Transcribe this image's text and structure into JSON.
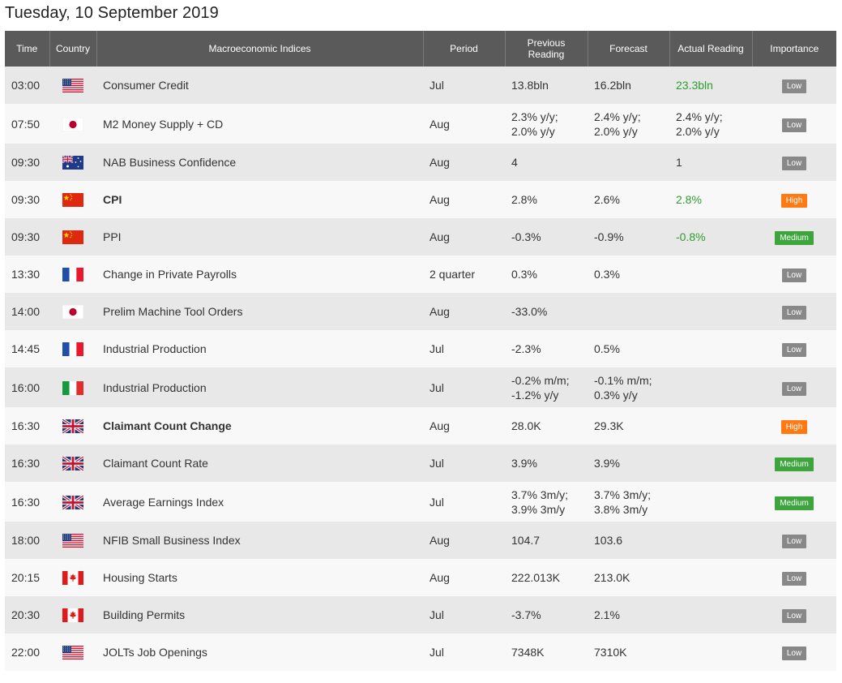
{
  "title": "Tuesday, 10 September 2019",
  "columns": {
    "time": "Time",
    "country": "Country",
    "index": "Macroeconomic Indices",
    "period": "Period",
    "previous_1": "Previous",
    "previous_2": "Reading",
    "forecast": "Forecast",
    "actual": "Actual Reading",
    "importance": "Importance"
  },
  "rows": [
    {
      "time": "03:00",
      "country": "us",
      "flag": "us-flag-icon",
      "index": "Consumer Credit",
      "bold": false,
      "period": "Jul",
      "previous": [
        "13.8bln"
      ],
      "forecast": [
        "16.2bln"
      ],
      "actual": [
        "23.3bln"
      ],
      "actual_color": "#2e9c2e",
      "importance": "Low"
    },
    {
      "time": "07:50",
      "country": "jp",
      "flag": "japan-flag-icon",
      "index": "M2 Money Supply + CD",
      "bold": false,
      "period": "Aug",
      "previous": [
        "2.3% y/y;",
        "2.0% y/y"
      ],
      "forecast": [
        "2.4% y/y;",
        "2.0% y/y"
      ],
      "actual": [
        "2.4% y/y;",
        "2.0% y/y"
      ],
      "actual_color": "",
      "importance": "Low"
    },
    {
      "time": "09:30",
      "country": "au",
      "flag": "australia-flag-icon",
      "index": "NAB Business Confidence",
      "bold": false,
      "period": "Aug",
      "previous": [
        "4"
      ],
      "forecast": [],
      "actual": [
        "1"
      ],
      "actual_color": "",
      "importance": "Low"
    },
    {
      "time": "09:30",
      "country": "cn",
      "flag": "china-flag-icon",
      "index": "CPI",
      "bold": true,
      "period": "Aug",
      "previous": [
        "2.8%"
      ],
      "forecast": [
        "2.6%"
      ],
      "actual": [
        "2.8%"
      ],
      "actual_color": "#2e9c2e",
      "importance": "High"
    },
    {
      "time": "09:30",
      "country": "cn",
      "flag": "china-flag-icon",
      "index": "PPI",
      "bold": false,
      "period": "Aug",
      "previous": [
        "-0.3%"
      ],
      "forecast": [
        "-0.9%"
      ],
      "actual": [
        "-0.8%"
      ],
      "actual_color": "#2e9c2e",
      "importance": "Medium"
    },
    {
      "time": "13:30",
      "country": "fr",
      "flag": "france-flag-icon",
      "index": "Change in Private Payrolls",
      "bold": false,
      "period": "2 quarter",
      "previous": [
        "0.3%"
      ],
      "forecast": [
        "0.3%"
      ],
      "actual": [],
      "actual_color": "",
      "importance": "Low"
    },
    {
      "time": "14:00",
      "country": "jp",
      "flag": "japan-flag-icon",
      "index": "Prelim Machine Tool Orders",
      "bold": false,
      "period": "Aug",
      "previous": [
        "-33.0%"
      ],
      "forecast": [],
      "actual": [],
      "actual_color": "",
      "importance": "Low"
    },
    {
      "time": "14:45",
      "country": "fr",
      "flag": "france-flag-icon",
      "index": "Industrial Production",
      "bold": false,
      "period": "Jul",
      "previous": [
        "-2.3%"
      ],
      "forecast": [
        "0.5%"
      ],
      "actual": [],
      "actual_color": "",
      "importance": "Low"
    },
    {
      "time": "16:00",
      "country": "it",
      "flag": "italy-flag-icon",
      "index": "Industrial Production",
      "bold": false,
      "period": "Jul",
      "previous": [
        "-0.2% m/m;",
        "-1.2% y/y"
      ],
      "forecast": [
        "-0.1% m/m;",
        "0.3% y/y"
      ],
      "actual": [],
      "actual_color": "",
      "importance": "Low"
    },
    {
      "time": "16:30",
      "country": "gb",
      "flag": "uk-flag-icon",
      "index": "Claimant Count Change",
      "bold": true,
      "period": "Aug",
      "previous": [
        "28.0K"
      ],
      "forecast": [
        "29.3K"
      ],
      "actual": [],
      "actual_color": "",
      "importance": "High"
    },
    {
      "time": "16:30",
      "country": "gb",
      "flag": "uk-flag-icon",
      "index": "Claimant Count Rate",
      "bold": false,
      "period": "Jul",
      "previous": [
        "3.9%"
      ],
      "forecast": [
        "3.9%"
      ],
      "actual": [],
      "actual_color": "",
      "importance": "Medium"
    },
    {
      "time": "16:30",
      "country": "gb",
      "flag": "uk-flag-icon",
      "index": "Average Earnings Index",
      "bold": false,
      "period": "Jul",
      "previous": [
        "3.7% 3m/y;",
        "3.9% 3m/y"
      ],
      "forecast": [
        "3.7% 3m/y;",
        "3.8% 3m/y"
      ],
      "actual": [],
      "actual_color": "",
      "importance": "Medium"
    },
    {
      "time": "18:00",
      "country": "us",
      "flag": "us-flag-icon",
      "index": "NFIB Small Business Index",
      "bold": false,
      "period": "Aug",
      "previous": [
        "104.7"
      ],
      "forecast": [
        "103.6"
      ],
      "actual": [],
      "actual_color": "",
      "importance": "Low"
    },
    {
      "time": "20:15",
      "country": "ca",
      "flag": "canada-flag-icon",
      "index": "Housing Starts",
      "bold": false,
      "period": "Aug",
      "previous": [
        "222.013K"
      ],
      "forecast": [
        "213.0K"
      ],
      "actual": [],
      "actual_color": "",
      "importance": "Low"
    },
    {
      "time": "20:30",
      "country": "ca",
      "flag": "canada-flag-icon",
      "index": "Building Permits",
      "bold": false,
      "period": "Jul",
      "previous": [
        "-3.7%"
      ],
      "forecast": [
        "2.1%"
      ],
      "actual": [],
      "actual_color": "",
      "importance": "Low"
    },
    {
      "time": "22:00",
      "country": "us",
      "flag": "us-flag-icon",
      "index": "JOLTs Job Openings",
      "bold": false,
      "period": "Jul",
      "previous": [
        "7348K"
      ],
      "forecast": [
        "7310K"
      ],
      "actual": [],
      "actual_color": "",
      "importance": "Low"
    }
  ],
  "importance_colors": {
    "Low": "#888888",
    "High": "#ff7a12",
    "Medium": "#3ca53c"
  }
}
